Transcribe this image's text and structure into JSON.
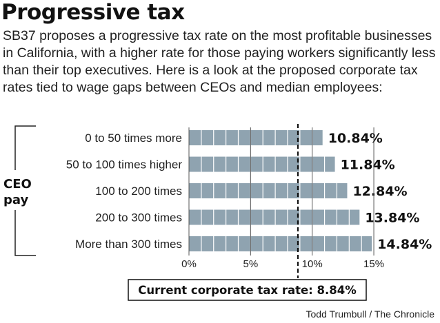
{
  "title": "Progressive tax",
  "subtitle": "SB37 proposes a progressive tax rate on the most profitable businesses in California, with a higher rate for those paying workers significantly less than their top executives. Here is a look at the proposed corporate tax rates tied to wage gaps between CEOs and median employees:",
  "source": "Todd Trumbull / The Chronicle",
  "colors": {
    "bar": "#8fa3b0",
    "bar_segment": "#ffffff",
    "text": "#1a1a1a"
  },
  "chart_data": {
    "type": "bar",
    "orientation": "horizontal",
    "group_label": "CEO pay",
    "categories": [
      "0 to 50 times more",
      "50 to 100 times higher",
      "100 to 200 times",
      "200 to 300 times",
      "More than 300 times"
    ],
    "values": [
      10.84,
      11.84,
      12.84,
      13.84,
      14.84
    ],
    "value_labels": [
      "10.84%",
      "11.84%",
      "12.84%",
      "13.84%",
      "14.84%"
    ],
    "xlim": [
      0,
      15
    ],
    "xticks": [
      0,
      5,
      10,
      15
    ],
    "xtick_labels": [
      "0%",
      "5%",
      "10%",
      "15%"
    ],
    "reference_line": {
      "value": 8.84,
      "label": "Current corporate tax rate: 8.84%"
    }
  }
}
